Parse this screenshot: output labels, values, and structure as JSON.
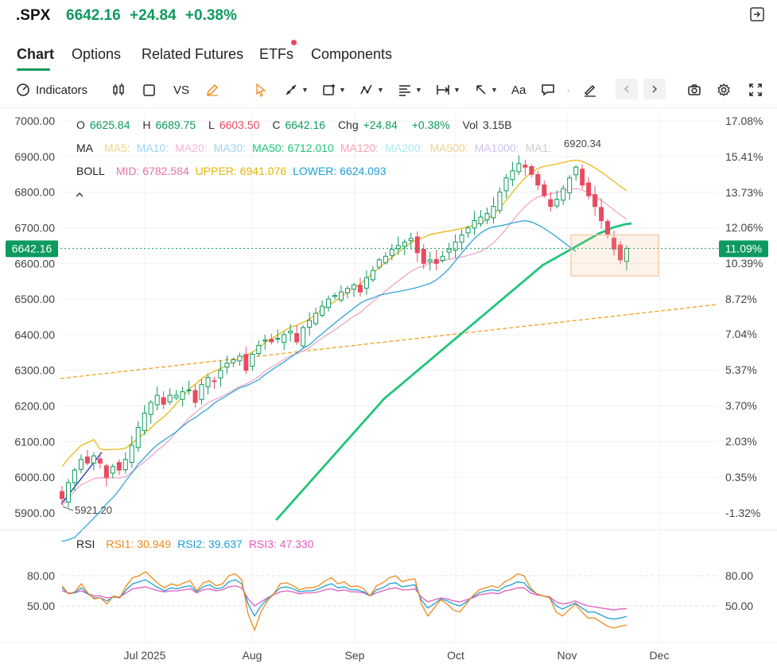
{
  "header": {
    "symbol": ".SPX",
    "price": "6642.16",
    "change": "+24.84",
    "change_pct": "+0.38%"
  },
  "tabs": [
    {
      "label": "Chart",
      "active": true
    },
    {
      "label": "Options"
    },
    {
      "label": "Related Futures"
    },
    {
      "label": "ETFs",
      "badge": true
    },
    {
      "label": "Components"
    }
  ],
  "toolbar": {
    "indicators_label": "Indicators",
    "vs_label": "VS",
    "text_label": "Aa"
  },
  "ohlc": {
    "o_label": "O",
    "o": "6625.84",
    "h_label": "H",
    "h": "6689.75",
    "l_label": "L",
    "l": "6603.50",
    "c_label": "C",
    "c": "6642.16",
    "chg_label": "Chg",
    "chg": "+24.84",
    "chg_pct": "+0.38%",
    "vol_label": "Vol",
    "vol": "3.15B"
  },
  "ma_legend": {
    "label": "MA",
    "items": [
      {
        "text": "MA5:",
        "color": "#f5d08a"
      },
      {
        "text": "MA10:",
        "color": "#9ed3f2"
      },
      {
        "text": "MA20:",
        "color": "#f2b8d8"
      },
      {
        "text": "MA30:",
        "color": "#9ed3f2"
      },
      {
        "text": "MA50: 6712.010",
        "color": "#22c47a"
      },
      {
        "text": "MA120:",
        "color": "#f5a3b4"
      },
      {
        "text": "MA200:",
        "color": "#a9e8f2"
      },
      {
        "text": "MA500:",
        "color": "#f5d08a"
      },
      {
        "text": "MA1000:",
        "color": "#cfc3ef"
      },
      {
        "text": "MA1:",
        "color": "#cccccc"
      }
    ]
  },
  "boll_legend": {
    "label": "BOLL",
    "items": [
      {
        "text": "MID: 6782.584",
        "color": "#ee6fa5"
      },
      {
        "text": "UPPER: 6941.076",
        "color": "#e8b400"
      },
      {
        "text": "LOWER: 6624.093",
        "color": "#1ea0d8"
      }
    ]
  },
  "rsi_legend": {
    "label": "RSI",
    "items": [
      {
        "text": "RSI1: 30.949",
        "color": "#f08a1c"
      },
      {
        "text": "RSI2: 39.637",
        "color": "#1ea0d8"
      },
      {
        "text": "RSI3: 47.330",
        "color": "#e25cc0"
      }
    ]
  },
  "chart_data": {
    "type": "candlestick",
    "price_axis": {
      "ticks": [
        "7000.00",
        "6900.00",
        "6800.00",
        "6700.00",
        "6600.00",
        "6500.00",
        "6400.00",
        "6300.00",
        "6200.00",
        "6100.00",
        "6000.00",
        "5900.00"
      ],
      "range": [
        5880,
        7010
      ]
    },
    "pct_axis": {
      "ticks": [
        "17.08%",
        "15.41%",
        "13.73%",
        "12.06%",
        "11.09%",
        "10.39%",
        "8.72%",
        "7.04%",
        "5.37%",
        "3.70%",
        "2.03%",
        "0.35%",
        "-1.32%"
      ]
    },
    "time_axis": [
      "Jul 2025",
      "Aug",
      "Sep",
      "Oct",
      "Nov",
      "Dec"
    ],
    "rsi_axis": {
      "ticks": [
        "80.00",
        "50.00"
      ],
      "range": [
        20,
        100
      ]
    },
    "last_price_label": "6642.16",
    "last_pct_label": "11.09%",
    "annotations": {
      "low_label": "5921.20",
      "high_label": "6920.34"
    },
    "closes": [
      5940,
      5985,
      6020,
      6050,
      6040,
      6060,
      6040,
      6000,
      6030,
      6020,
      6050,
      6090,
      6140,
      6180,
      6210,
      6230,
      6205,
      6230,
      6230,
      6240,
      6245,
      6210,
      6260,
      6280,
      6270,
      6300,
      6320,
      6330,
      6340,
      6300,
      6345,
      6370,
      6385,
      6380,
      6390,
      6400,
      6410,
      6380,
      6420,
      6440,
      6460,
      6480,
      6500,
      6510,
      6520,
      6530,
      6540,
      6520,
      6560,
      6580,
      6610,
      6620,
      6640,
      6650,
      6660,
      6670,
      6630,
      6600,
      6610,
      6600,
      6620,
      6640,
      6660,
      6680,
      6700,
      6720,
      6730,
      6740,
      6760,
      6800,
      6840,
      6860,
      6880,
      6870,
      6850,
      6820,
      6790,
      6760,
      6780,
      6810,
      6840,
      6870,
      6820,
      6790,
      6760,
      6720,
      6680,
      6640,
      6610,
      6642
    ],
    "ma50": [
      5880,
      5900,
      5920,
      5940,
      5960,
      5980,
      6000,
      6020,
      6040,
      6060,
      6080,
      6100,
      6120,
      6140,
      6160,
      6180,
      6200,
      6220,
      6235,
      6250,
      6265,
      6280,
      6295,
      6310,
      6325,
      6340,
      6355,
      6370,
      6385,
      6400,
      6415,
      6430,
      6445,
      6460,
      6475,
      6490,
      6505,
      6520,
      6535,
      6550,
      6565,
      6580,
      6595,
      6605,
      6615,
      6625,
      6635,
      6645,
      6655,
      6665,
      6675,
      6685,
      6692,
      6700,
      6705,
      6710,
      6712
    ],
    "rsi1": [
      70,
      62,
      64,
      72,
      63,
      57,
      58,
      52,
      60,
      58,
      70,
      78,
      80,
      84,
      78,
      72,
      68,
      72,
      70,
      73,
      75,
      65,
      73,
      75,
      70,
      72,
      80,
      82,
      76,
      42,
      26,
      44,
      55,
      62,
      72,
      73,
      70,
      66,
      68,
      68,
      70,
      75,
      78,
      72,
      74,
      69,
      70,
      67,
      60,
      70,
      73,
      78,
      80,
      74,
      76,
      77,
      52,
      40,
      48,
      56,
      52,
      46,
      44,
      52,
      60,
      66,
      68,
      70,
      68,
      74,
      77,
      82,
      80,
      68,
      62,
      60,
      58,
      44,
      40,
      46,
      52,
      44,
      38,
      38,
      34,
      30,
      28,
      30,
      31
    ],
    "rsi2": [
      68,
      62,
      63,
      68,
      62,
      58,
      58,
      55,
      59,
      58,
      66,
      72,
      74,
      76,
      72,
      68,
      65,
      68,
      67,
      69,
      70,
      64,
      69,
      71,
      67,
      68,
      74,
      76,
      72,
      52,
      40,
      50,
      57,
      62,
      68,
      69,
      67,
      64,
      65,
      65,
      67,
      70,
      72,
      68,
      69,
      66,
      66,
      64,
      60,
      66,
      68,
      72,
      73,
      69,
      70,
      71,
      56,
      48,
      52,
      57,
      55,
      52,
      50,
      54,
      59,
      63,
      65,
      66,
      65,
      69,
      71,
      74,
      73,
      66,
      62,
      60,
      58,
      50,
      47,
      50,
      53,
      48,
      44,
      44,
      41,
      38,
      37,
      38,
      39.6
    ],
    "rsi3": [
      65,
      63,
      63,
      65,
      62,
      60,
      60,
      58,
      59,
      59,
      63,
      67,
      68,
      69,
      67,
      65,
      64,
      65,
      65,
      66,
      67,
      63,
      66,
      67,
      65,
      66,
      69,
      70,
      68,
      57,
      50,
      54,
      58,
      61,
      64,
      65,
      64,
      62,
      63,
      63,
      64,
      66,
      67,
      65,
      66,
      64,
      64,
      63,
      60,
      63,
      65,
      67,
      68,
      66,
      66,
      67,
      59,
      54,
      56,
      58,
      57,
      55,
      54,
      56,
      58,
      61,
      62,
      63,
      62,
      65,
      66,
      68,
      68,
      63,
      61,
      60,
      59,
      54,
      52,
      53,
      55,
      52,
      50,
      49,
      48,
      47,
      46,
      47,
      47.3
    ]
  }
}
